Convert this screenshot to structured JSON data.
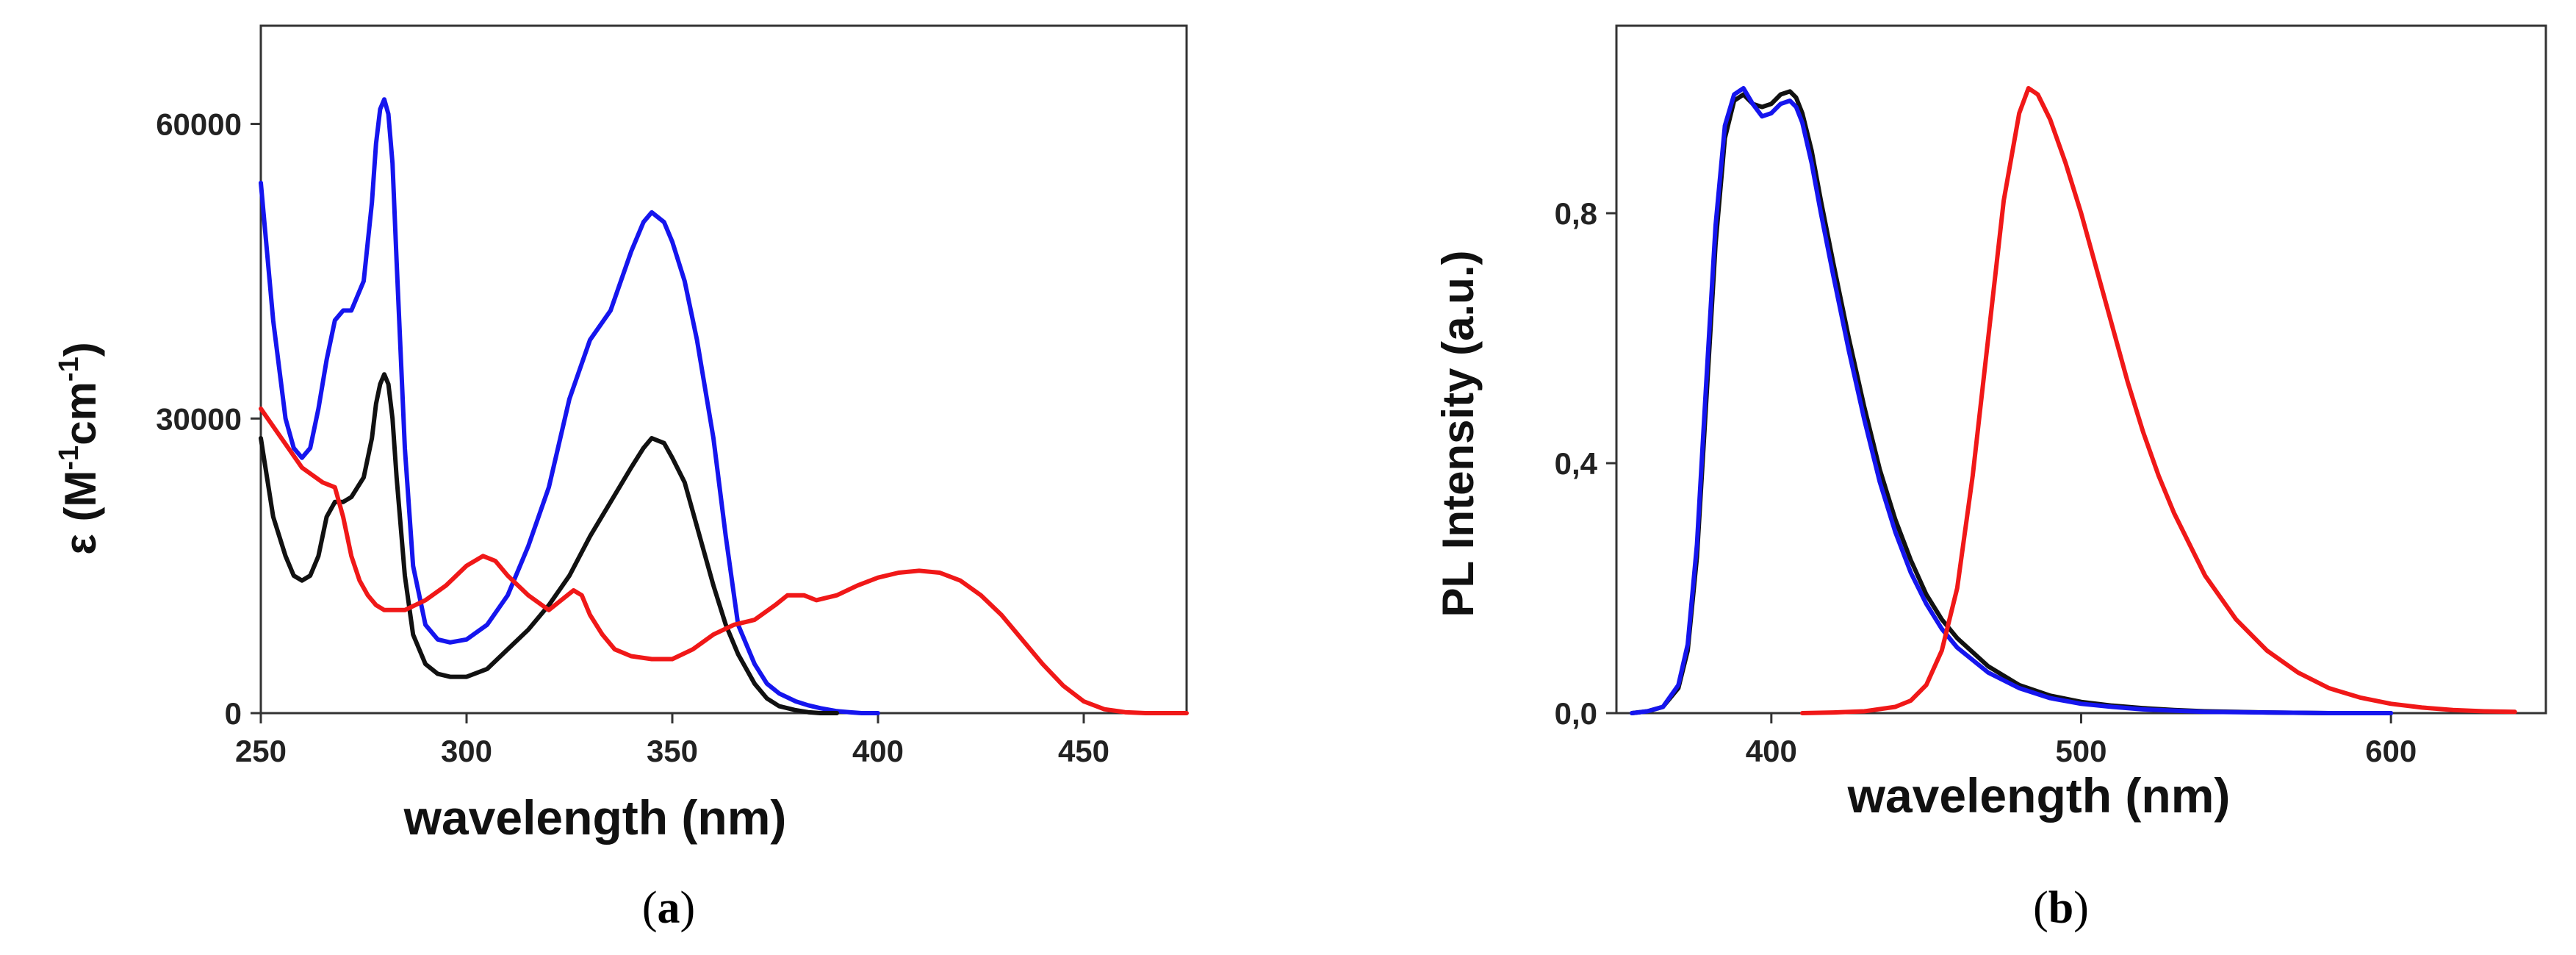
{
  "chart_data": [
    {
      "type": "line",
      "panel_label": "a",
      "xlabel": "wavelength (nm)",
      "ylabel": {
        "prefix": "ε (M",
        "sup1": "-1",
        "mid": "cm",
        "sup2": "-1",
        "suffix": ")"
      },
      "xlim": [
        250,
        475
      ],
      "ylim": [
        0,
        70000
      ],
      "x_ticks": [
        250,
        300,
        350,
        400,
        450
      ],
      "y_ticks": [
        0,
        30000,
        60000
      ],
      "series": [
        {
          "name": "blue",
          "color": "#1515ee",
          "x": [
            250,
            253,
            256,
            258,
            260,
            262,
            264,
            266,
            268,
            270,
            272,
            275,
            277,
            278,
            279,
            280,
            281,
            282,
            283,
            285,
            287,
            290,
            293,
            296,
            300,
            305,
            310,
            315,
            320,
            325,
            330,
            335,
            340,
            343,
            345,
            348,
            350,
            353,
            356,
            360,
            363,
            366,
            370,
            373,
            376,
            380,
            383,
            386,
            390,
            393,
            396,
            400
          ],
          "y": [
            54000,
            40000,
            30000,
            27000,
            26000,
            27000,
            31000,
            36000,
            40000,
            41000,
            41000,
            44000,
            52000,
            58000,
            61500,
            62500,
            61000,
            56000,
            46000,
            27000,
            15000,
            9000,
            7500,
            7200,
            7500,
            9000,
            12000,
            17000,
            23000,
            32000,
            38000,
            41000,
            47000,
            50000,
            51000,
            50000,
            48000,
            44000,
            38000,
            28000,
            18000,
            9000,
            5000,
            3000,
            2000,
            1200,
            800,
            500,
            200,
            100,
            0,
            0
          ]
        },
        {
          "name": "black",
          "color": "#111111",
          "x": [
            250,
            253,
            256,
            258,
            260,
            262,
            264,
            266,
            268,
            270,
            272,
            275,
            277,
            278,
            279,
            280,
            281,
            282,
            283,
            285,
            287,
            290,
            293,
            296,
            300,
            305,
            310,
            315,
            320,
            325,
            330,
            335,
            340,
            343,
            345,
            348,
            350,
            353,
            356,
            360,
            363,
            366,
            370,
            373,
            376,
            380,
            383,
            386,
            390
          ],
          "y": [
            28000,
            20000,
            16000,
            14000,
            13500,
            14000,
            16000,
            20000,
            21500,
            21500,
            22000,
            24000,
            28000,
            31500,
            33500,
            34500,
            33500,
            30000,
            24000,
            14000,
            8000,
            5000,
            4000,
            3700,
            3700,
            4500,
            6500,
            8500,
            11000,
            14000,
            18000,
            21500,
            25000,
            27000,
            28000,
            27500,
            26000,
            23500,
            19000,
            13000,
            9000,
            6000,
            3000,
            1500,
            700,
            300,
            100,
            0,
            0
          ]
        },
        {
          "name": "red",
          "color": "#f01818",
          "x": [
            250,
            255,
            260,
            265,
            268,
            270,
            272,
            274,
            276,
            278,
            280,
            285,
            290,
            295,
            300,
            304,
            307,
            310,
            315,
            320,
            323,
            326,
            328,
            330,
            333,
            336,
            340,
            345,
            350,
            355,
            360,
            365,
            370,
            375,
            378,
            382,
            385,
            390,
            395,
            400,
            405,
            410,
            415,
            420,
            425,
            430,
            435,
            440,
            445,
            450,
            455,
            460,
            465,
            470,
            475
          ],
          "y": [
            31000,
            28000,
            25000,
            23500,
            23000,
            20000,
            16000,
            13500,
            12000,
            11000,
            10500,
            10500,
            11500,
            13000,
            15000,
            16000,
            15500,
            14000,
            12000,
            10500,
            11500,
            12500,
            12000,
            10000,
            8000,
            6500,
            5800,
            5500,
            5500,
            6500,
            8000,
            9000,
            9500,
            11000,
            12000,
            12000,
            11500,
            12000,
            13000,
            13800,
            14300,
            14500,
            14300,
            13500,
            12000,
            10000,
            7500,
            5000,
            2800,
            1200,
            400,
            100,
            0,
            0,
            0
          ]
        }
      ]
    },
    {
      "type": "line",
      "panel_label": "b",
      "xlabel": "wavelength (nm)",
      "ylabel": "PL Intensity (a.u.)",
      "xlim": [
        350,
        650
      ],
      "ylim": [
        0,
        1.1
      ],
      "x_ticks": [
        400,
        500,
        600
      ],
      "y_ticks": [
        0.0,
        0.4,
        0.8
      ],
      "y_tick_labels": [
        "0,0",
        "0,4",
        "0,8"
      ],
      "series": [
        {
          "name": "black",
          "color": "#111111",
          "x": [
            355,
            360,
            365,
            370,
            373,
            376,
            379,
            382,
            385,
            388,
            391,
            394,
            397,
            400,
            403,
            406,
            408,
            410,
            413,
            416,
            420,
            425,
            430,
            435,
            440,
            445,
            450,
            455,
            460,
            470,
            480,
            490,
            500,
            510,
            520,
            530,
            540,
            560,
            580,
            600
          ],
          "y": [
            0,
            0.003,
            0.01,
            0.04,
            0.1,
            0.25,
            0.5,
            0.75,
            0.92,
            0.98,
            0.99,
            0.975,
            0.97,
            0.975,
            0.99,
            0.995,
            0.985,
            0.96,
            0.9,
            0.82,
            0.72,
            0.6,
            0.49,
            0.39,
            0.31,
            0.245,
            0.19,
            0.15,
            0.12,
            0.075,
            0.045,
            0.028,
            0.018,
            0.012,
            0.008,
            0.005,
            0.003,
            0.001,
            0,
            0
          ]
        },
        {
          "name": "blue",
          "color": "#1515ee",
          "x": [
            355,
            360,
            365,
            370,
            373,
            376,
            379,
            382,
            385,
            388,
            391,
            394,
            397,
            400,
            403,
            406,
            408,
            410,
            413,
            416,
            420,
            425,
            430,
            435,
            440,
            445,
            450,
            455,
            460,
            470,
            480,
            490,
            500,
            510,
            520,
            530,
            540,
            560,
            580,
            600
          ],
          "y": [
            0,
            0.003,
            0.01,
            0.045,
            0.11,
            0.27,
            0.53,
            0.78,
            0.94,
            0.99,
            1.0,
            0.975,
            0.955,
            0.96,
            0.975,
            0.98,
            0.97,
            0.945,
            0.88,
            0.8,
            0.7,
            0.58,
            0.47,
            0.37,
            0.29,
            0.225,
            0.175,
            0.135,
            0.105,
            0.065,
            0.04,
            0.024,
            0.015,
            0.01,
            0.006,
            0.004,
            0.002,
            0.001,
            0,
            0
          ]
        },
        {
          "name": "red",
          "color": "#f01818",
          "x": [
            410,
            420,
            430,
            440,
            445,
            450,
            455,
            460,
            465,
            470,
            475,
            480,
            483,
            486,
            490,
            495,
            500,
            505,
            510,
            515,
            520,
            525,
            530,
            540,
            550,
            560,
            570,
            580,
            590,
            600,
            610,
            620,
            630,
            640
          ],
          "y": [
            0,
            0.001,
            0.003,
            0.01,
            0.02,
            0.045,
            0.1,
            0.2,
            0.38,
            0.6,
            0.82,
            0.96,
            1.0,
            0.99,
            0.95,
            0.88,
            0.8,
            0.71,
            0.62,
            0.53,
            0.45,
            0.38,
            0.32,
            0.22,
            0.15,
            0.1,
            0.065,
            0.04,
            0.025,
            0.015,
            0.009,
            0.005,
            0.003,
            0.002
          ]
        }
      ]
    }
  ]
}
